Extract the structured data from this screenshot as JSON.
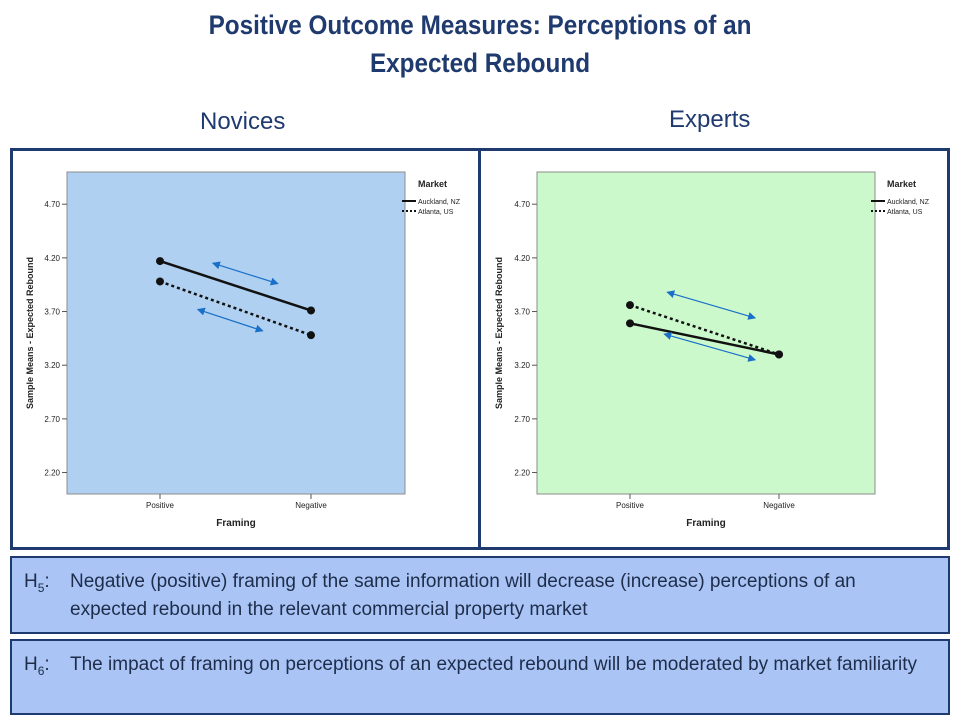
{
  "page": {
    "title_line1": "Positive Outcome Measures: Perceptions of an",
    "title_line2": "Expected Rebound",
    "panel_titles": [
      "Novices",
      "Experts"
    ]
  },
  "chart_data": [
    {
      "type": "line",
      "title": "Novices",
      "xlabel": "Framing",
      "ylabel": "Sample Means - Expected Rebound",
      "categories": [
        "Positive",
        "Negative"
      ],
      "yticks": [
        "2.20",
        "2.70",
        "3.20",
        "3.70",
        "4.20",
        "4.70"
      ],
      "ylim": [
        2.0,
        5.0
      ],
      "legend_title": "Market",
      "legend_position": "top-right",
      "background": "#afd0f0",
      "series": [
        {
          "name": "Auckland, NZ",
          "style": "solid",
          "values": [
            4.17,
            3.71
          ]
        },
        {
          "name": "Atlanta, US",
          "style": "dotted",
          "values": [
            3.98,
            3.48
          ]
        }
      ],
      "arrow_color": "#1a6fc9",
      "arrows": [
        {
          "from": [
            0.35,
            4.15
          ],
          "to": [
            0.78,
            3.96
          ]
        },
        {
          "from": [
            0.25,
            3.72
          ],
          "to": [
            0.68,
            3.52
          ]
        }
      ]
    },
    {
      "type": "line",
      "title": "Experts",
      "xlabel": "Framing",
      "ylabel": "Sample Means - Expected Rebound",
      "categories": [
        "Positive",
        "Negative"
      ],
      "yticks": [
        "2.20",
        "2.70",
        "3.20",
        "3.70",
        "4.20",
        "4.70"
      ],
      "ylim": [
        2.0,
        5.0
      ],
      "legend_title": "Market",
      "legend_position": "top-right",
      "background": "#ccf9cc",
      "series": [
        {
          "name": "Auckland, NZ",
          "style": "solid",
          "values": [
            3.59,
            3.3
          ]
        },
        {
          "name": "Atlanta, US",
          "style": "dotted",
          "values": [
            3.76,
            3.3
          ]
        }
      ],
      "arrow_color": "#1a6fc9",
      "arrows": [
        {
          "from": [
            0.25,
            3.88
          ],
          "to": [
            0.84,
            3.64
          ]
        },
        {
          "from": [
            0.23,
            3.49
          ],
          "to": [
            0.84,
            3.25
          ]
        }
      ]
    }
  ],
  "hypotheses": [
    {
      "label": "H",
      "sub": "5",
      "colon": ":",
      "text": "Negative (positive) framing of the same information will decrease (increase) perceptions of an expected rebound in the relevant commercial property market"
    },
    {
      "label": "H",
      "sub": "6",
      "colon": ":",
      "text": "The impact of framing on perceptions of an expected rebound will be moderated by market familiarity"
    }
  ]
}
